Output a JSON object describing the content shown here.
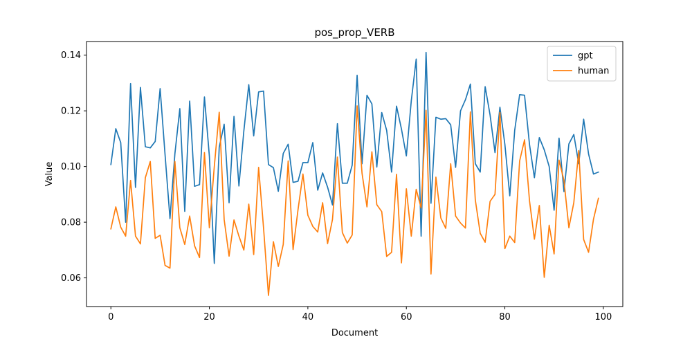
{
  "chart_data": {
    "type": "line",
    "title": "pos_prop_VERB",
    "xlabel": "Document",
    "ylabel": "Value",
    "xlim": [
      -4.95,
      103.95
    ],
    "ylim": [
      0.0497,
      0.1449
    ],
    "xticks": [
      0,
      20,
      40,
      60,
      80,
      100
    ],
    "xtick_labels": [
      "0",
      "20",
      "40",
      "60",
      "80",
      "100"
    ],
    "yticks": [
      0.06,
      0.08,
      0.1,
      0.12,
      0.14
    ],
    "ytick_labels": [
      "0.06",
      "0.08",
      "0.10",
      "0.12",
      "0.14"
    ],
    "grid": false,
    "legend_position": "top-right",
    "x": [
      0,
      1,
      2,
      3,
      4,
      5,
      6,
      7,
      8,
      9,
      10,
      11,
      12,
      13,
      14,
      15,
      16,
      17,
      18,
      19,
      20,
      21,
      22,
      23,
      24,
      25,
      26,
      27,
      28,
      29,
      30,
      31,
      32,
      33,
      34,
      35,
      36,
      37,
      38,
      39,
      40,
      41,
      42,
      43,
      44,
      45,
      46,
      47,
      48,
      49,
      50,
      51,
      52,
      53,
      54,
      55,
      56,
      57,
      58,
      59,
      60,
      61,
      62,
      63,
      64,
      65,
      66,
      67,
      68,
      69,
      70,
      71,
      72,
      73,
      74,
      75,
      76,
      77,
      78,
      79,
      80,
      81,
      82,
      83,
      84,
      85,
      86,
      87,
      88,
      89,
      90,
      91,
      92,
      93,
      94,
      95,
      96,
      97,
      98,
      99
    ],
    "series": [
      {
        "name": "gpt",
        "color": "#1f77b4",
        "values": [
          0.1007,
          0.1136,
          0.1086,
          0.08,
          0.1298,
          0.0925,
          0.1284,
          0.1071,
          0.1067,
          0.109,
          0.128,
          0.1043,
          0.0813,
          0.1046,
          0.1208,
          0.0839,
          0.1235,
          0.0929,
          0.0935,
          0.125,
          0.1037,
          0.0652,
          0.1069,
          0.1152,
          0.087,
          0.118,
          0.093,
          0.1128,
          0.1294,
          0.111,
          0.1268,
          0.1271,
          0.1007,
          0.0996,
          0.0911,
          0.1047,
          0.108,
          0.0943,
          0.0947,
          0.1014,
          0.1014,
          0.1086,
          0.0915,
          0.0977,
          0.0926,
          0.0862,
          0.1154,
          0.094,
          0.094,
          0.1005,
          0.1328,
          0.101,
          0.1256,
          0.1225,
          0.0998,
          0.1194,
          0.113,
          0.098,
          0.1217,
          0.1135,
          0.1038,
          0.1236,
          0.1386,
          0.075,
          0.141,
          0.0868,
          0.1177,
          0.117,
          0.1172,
          0.115,
          0.0997,
          0.12,
          0.124,
          0.1296,
          0.101,
          0.098,
          0.1287,
          0.1185,
          0.105,
          0.1213,
          0.108,
          0.0895,
          0.113,
          0.1258,
          0.1256,
          0.108,
          0.096,
          0.1104,
          0.106,
          0.1,
          0.0843,
          0.1102,
          0.091,
          0.1081,
          0.1115,
          0.101,
          0.117,
          0.1045,
          0.0973,
          0.098
        ]
      },
      {
        "name": "human",
        "color": "#ff7f0e",
        "values": [
          0.0776,
          0.0855,
          0.0782,
          0.075,
          0.095,
          0.075,
          0.0722,
          0.096,
          0.1018,
          0.0742,
          0.0753,
          0.0645,
          0.0635,
          0.1018,
          0.078,
          0.072,
          0.0822,
          0.0715,
          0.0673,
          0.105,
          0.078,
          0.1,
          0.1195,
          0.081,
          0.0678,
          0.0808,
          0.075,
          0.07,
          0.0865,
          0.0684,
          0.0997,
          0.078,
          0.0537,
          0.073,
          0.0641,
          0.072,
          0.102,
          0.0702,
          0.0845,
          0.0973,
          0.0825,
          0.0785,
          0.0765,
          0.087,
          0.0723,
          0.081,
          0.1034,
          0.0763,
          0.0725,
          0.0754,
          0.1218,
          0.0976,
          0.0855,
          0.1053,
          0.0863,
          0.0838,
          0.0677,
          0.0692,
          0.0972,
          0.0654,
          0.092,
          0.075,
          0.0918,
          0.0851,
          0.1202,
          0.0614,
          0.0962,
          0.0815,
          0.0778,
          0.101,
          0.0822,
          0.0797,
          0.0779,
          0.1196,
          0.088,
          0.076,
          0.0728,
          0.0875,
          0.09,
          0.1194,
          0.0705,
          0.075,
          0.0727,
          0.102,
          0.1096,
          0.0878,
          0.0739,
          0.086,
          0.0602,
          0.0789,
          0.0686,
          0.1023,
          0.095,
          0.078,
          0.087,
          0.1057,
          0.0738,
          0.0692,
          0.0811,
          0.0886
        ]
      }
    ]
  }
}
